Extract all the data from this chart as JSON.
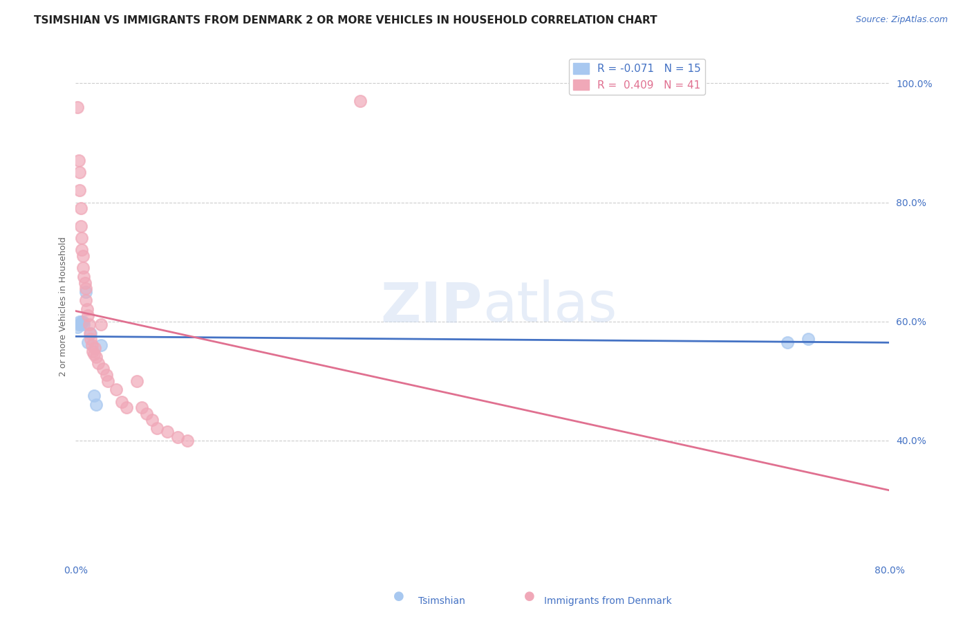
{
  "title": "TSIMSHIAN VS IMMIGRANTS FROM DENMARK 2 OR MORE VEHICLES IN HOUSEHOLD CORRELATION CHART",
  "source": "Source: ZipAtlas.com",
  "ylabel": "2 or more Vehicles in Household",
  "watermark": "ZIPatlas",
  "xlim": [
    0.0,
    0.8
  ],
  "ylim": [
    0.2,
    1.05
  ],
  "xtick_positions": [
    0.0,
    0.1,
    0.2,
    0.3,
    0.4,
    0.5,
    0.6,
    0.7,
    0.8
  ],
  "xtick_labels": [
    "0.0%",
    "",
    "",
    "",
    "",
    "",
    "",
    "",
    "80.0%"
  ],
  "ytick_positions": [
    0.4,
    0.6,
    0.8,
    1.0
  ],
  "ytick_labels": [
    "40.0%",
    "60.0%",
    "80.0%",
    "100.0%"
  ],
  "legend_label_1": "R = -0.071   N = 15",
  "legend_label_2": "R =  0.409   N = 41",
  "tsimshian_color": "#a8c8f0",
  "denmark_color": "#f0a8b8",
  "tsimshian_line_color": "#4472c4",
  "denmark_line_color": "#e07090",
  "background_color": "#ffffff",
  "grid_color": "#cccccc",
  "axis_color": "#4472c4",
  "title_fontsize": 11,
  "source_fontsize": 9,
  "axis_label_fontsize": 9,
  "tick_fontsize": 10,
  "tsimshian_x": [
    0.002,
    0.003,
    0.004,
    0.005,
    0.006,
    0.007,
    0.008,
    0.01,
    0.012,
    0.015,
    0.018,
    0.02,
    0.025,
    0.7,
    0.72
  ],
  "tsimshian_y": [
    0.59,
    0.595,
    0.6,
    0.595,
    0.6,
    0.6,
    0.595,
    0.65,
    0.565,
    0.58,
    0.475,
    0.46,
    0.56,
    0.565,
    0.57
  ],
  "denmark_x": [
    0.002,
    0.003,
    0.004,
    0.004,
    0.005,
    0.005,
    0.006,
    0.006,
    0.007,
    0.007,
    0.008,
    0.009,
    0.01,
    0.01,
    0.011,
    0.012,
    0.013,
    0.014,
    0.015,
    0.016,
    0.017,
    0.018,
    0.019,
    0.02,
    0.022,
    0.025,
    0.027,
    0.03,
    0.032,
    0.04,
    0.045,
    0.05,
    0.06,
    0.065,
    0.07,
    0.075,
    0.08,
    0.09,
    0.1,
    0.11,
    0.28
  ],
  "denmark_y": [
    0.96,
    0.87,
    0.85,
    0.82,
    0.79,
    0.76,
    0.74,
    0.72,
    0.71,
    0.69,
    0.675,
    0.665,
    0.655,
    0.635,
    0.62,
    0.61,
    0.595,
    0.58,
    0.57,
    0.56,
    0.55,
    0.545,
    0.555,
    0.54,
    0.53,
    0.595,
    0.52,
    0.51,
    0.5,
    0.485,
    0.465,
    0.455,
    0.5,
    0.455,
    0.445,
    0.435,
    0.42,
    0.415,
    0.405,
    0.4,
    0.97
  ]
}
